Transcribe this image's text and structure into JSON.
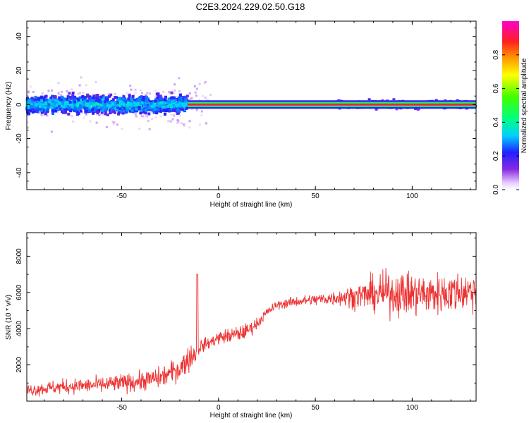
{
  "title": "C2E3.2024.229.02.50.G18",
  "chart_data": [
    {
      "type": "heatmap",
      "xlabel": "Height of straight line (km)",
      "ylabel": "Frequency (Hz)",
      "xlim": [
        -99,
        133
      ],
      "ylim": [
        -50,
        49
      ],
      "xticks": [
        -50,
        0,
        50,
        100
      ],
      "yticks": [
        -40,
        -20,
        0,
        20,
        40
      ],
      "colorbar": {
        "label": "Normalized spectral amplitude",
        "range": [
          0,
          1
        ],
        "ticks": [
          0.0,
          0.2,
          0.4,
          0.6,
          0.8
        ]
      },
      "features": [
        {
          "x_range": [
            -99,
            -16
          ],
          "freq_center": 0,
          "freq_spread": 8,
          "amplitude": 0.3,
          "note": "broad noisy band"
        },
        {
          "x_range": [
            -16,
            133
          ],
          "freq_center": 0,
          "freq_spread": 1,
          "amplitude": 0.9,
          "note": "narrow strong carrier line"
        },
        {
          "x_range": [
            60,
            133
          ],
          "freq_center": 0,
          "freq_spread": 4,
          "amplitude": 0.2,
          "note": "slight broadening"
        }
      ]
    },
    {
      "type": "line",
      "xlabel": "Height of straight line (km)",
      "ylabel": "SNR (10 * v/v)",
      "xlim": [
        -99,
        133
      ],
      "ylim": [
        0,
        9300
      ],
      "xticks": [
        -50,
        0,
        50,
        100
      ],
      "yticks": [
        2000,
        4000,
        6000,
        8000
      ],
      "color": "#ee3333",
      "series": [
        {
          "x": [
            -99,
            -90,
            -80,
            -70,
            -60,
            -50,
            -40,
            -30,
            -20,
            -15,
            -12,
            -10,
            -5,
            0,
            5,
            10,
            15,
            20,
            25,
            30,
            40,
            50,
            60,
            70,
            80,
            90,
            100,
            110,
            120,
            133
          ],
          "y": [
            600,
            700,
            800,
            850,
            900,
            1000,
            1100,
            1300,
            1800,
            2400,
            2600,
            3000,
            3200,
            3500,
            3600,
            3700,
            3900,
            4300,
            4900,
            5300,
            5500,
            5600,
            5700,
            5800,
            5900,
            6000,
            5900,
            5900,
            6000,
            6100
          ],
          "spread": [
            400,
            450,
            500,
            500,
            550,
            600,
            650,
            700,
            800,
            900,
            800,
            500,
            400,
            450,
            500,
            550,
            500,
            400,
            300,
            300,
            350,
            400,
            500,
            800,
            1200,
            1500,
            1500,
            1400,
            1400,
            1300
          ]
        }
      ]
    }
  ]
}
